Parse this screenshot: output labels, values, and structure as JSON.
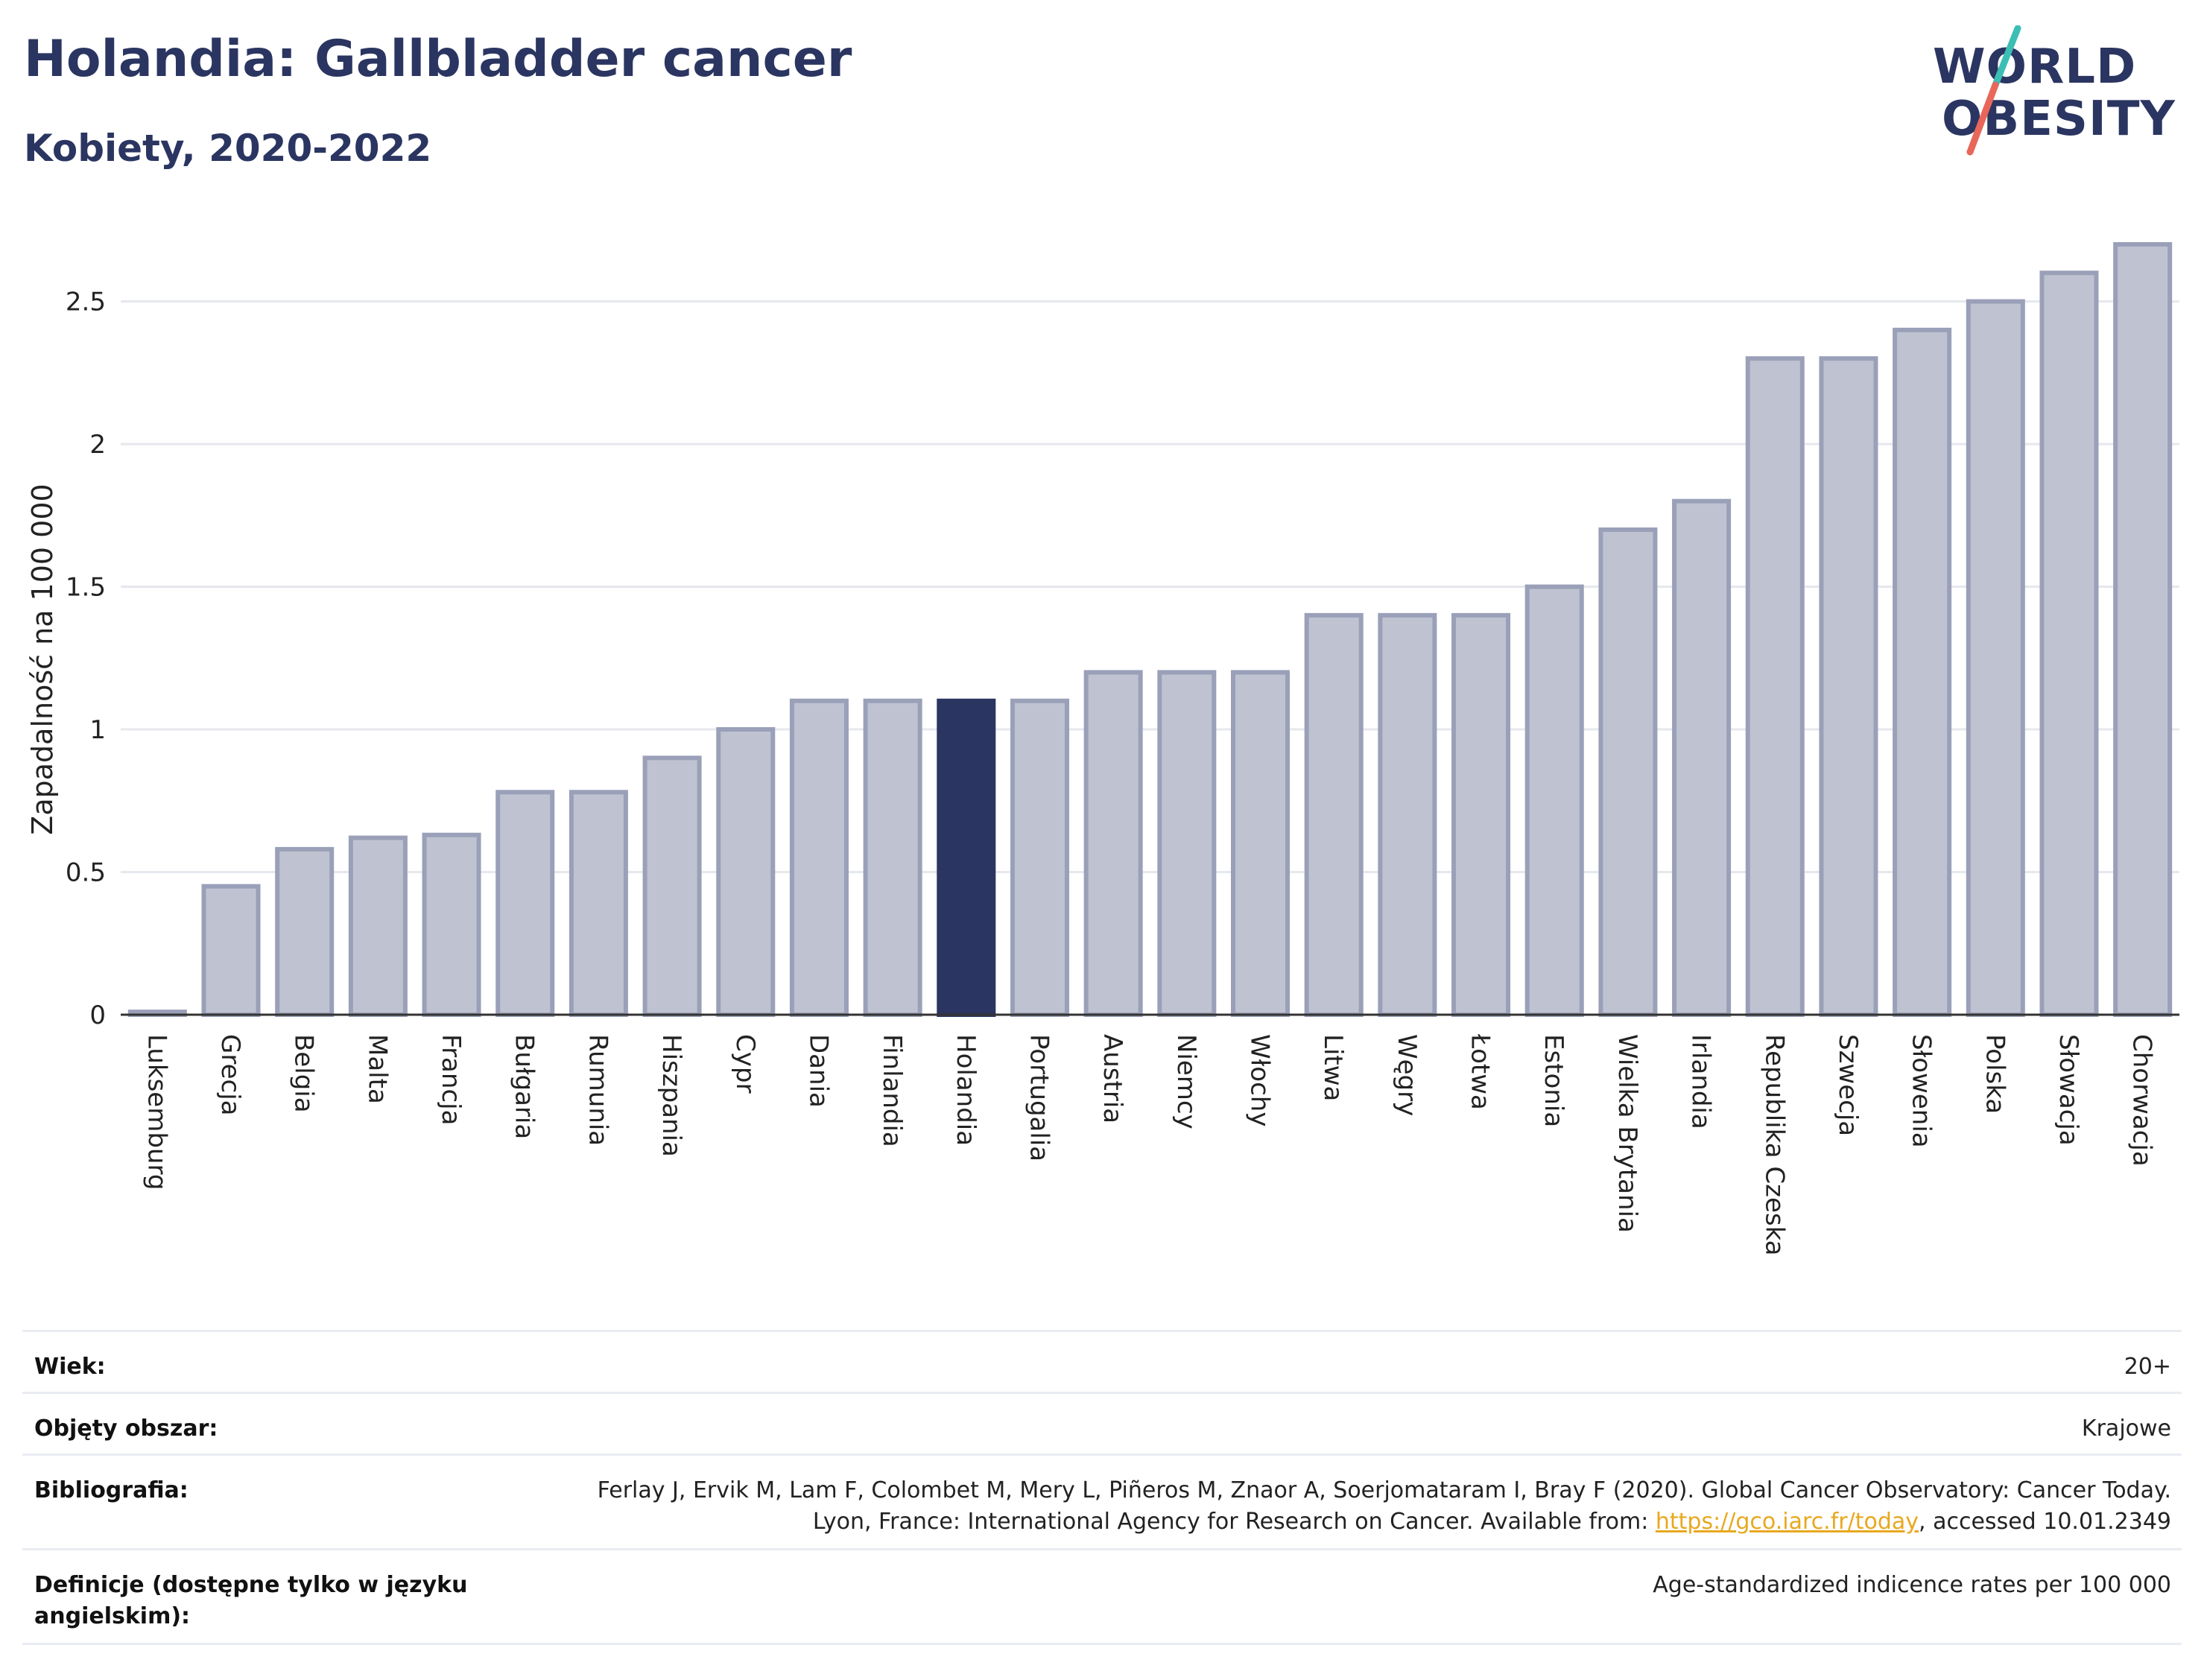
{
  "title": "Holandia: Gallbladder cancer",
  "subtitle": "Kobiety, 2020-2022",
  "logo": {
    "line1": "WORLD",
    "line2": "OBESITY",
    "slash_color_top": "#3bbfb5",
    "slash_color_bottom": "#e8675a"
  },
  "colors": {
    "bar": "#bfc3d1",
    "bar_stroke": "#9aa0b8",
    "highlight": "#2b3561",
    "grid": "#e6e8ee",
    "axis": "#333333"
  },
  "chart_data": {
    "type": "bar",
    "ylabel": "Zapadalność na 100 000",
    "ylim": [
      0,
      2.7
    ],
    "yticks": [
      0,
      0.5,
      1,
      1.5,
      2,
      2.5
    ],
    "ytick_labels": [
      "0",
      "0.5",
      "1",
      "1.5",
      "2",
      "2.5"
    ],
    "grid": true,
    "highlight_category": "Holandia",
    "categories": [
      "Luksemburg",
      "Grecja",
      "Belgia",
      "Malta",
      "Francja",
      "Bułgaria",
      "Rumunia",
      "Hiszpania",
      "Cypr",
      "Dania",
      "Finlandia",
      "Holandia",
      "Portugalia",
      "Austria",
      "Niemcy",
      "Włochy",
      "Litwa",
      "Węgry",
      "Łotwa",
      "Estonia",
      "Wielka Brytania",
      "Irlandia",
      "Republika Czeska",
      "Szwecja",
      "Słowenia",
      "Polska",
      "Słowacja",
      "Chorwacja"
    ],
    "values": [
      0.01,
      0.45,
      0.58,
      0.62,
      0.63,
      0.78,
      0.78,
      0.9,
      1.0,
      1.1,
      1.1,
      1.1,
      1.1,
      1.2,
      1.2,
      1.2,
      1.4,
      1.4,
      1.4,
      1.5,
      1.7,
      1.8,
      2.3,
      2.3,
      2.4,
      2.5,
      2.6,
      2.7
    ]
  },
  "info": {
    "age_label": "Wiek:",
    "age_value": "20+",
    "area_label": "Objęty obszar:",
    "area_value": "Krajowe",
    "bib_label": "Bibliografia:",
    "bib_text1": "Ferlay J, Ervik M, Lam F, Colombet M, Mery L, Piñeros M, Znaor A, Soerjomataram I, Bray F (2020). Global Cancer Observatory: Cancer Today. Lyon, France: International Agency for Research on Cancer. Available from: ",
    "bib_link": "https://gco.iarc.fr/today",
    "bib_text2": ", accessed 10.01.2349",
    "def_label": "Definicje (dostępne tylko w języku angielskim):",
    "def_value": "Age-standardized indicence rates per 100 000"
  }
}
